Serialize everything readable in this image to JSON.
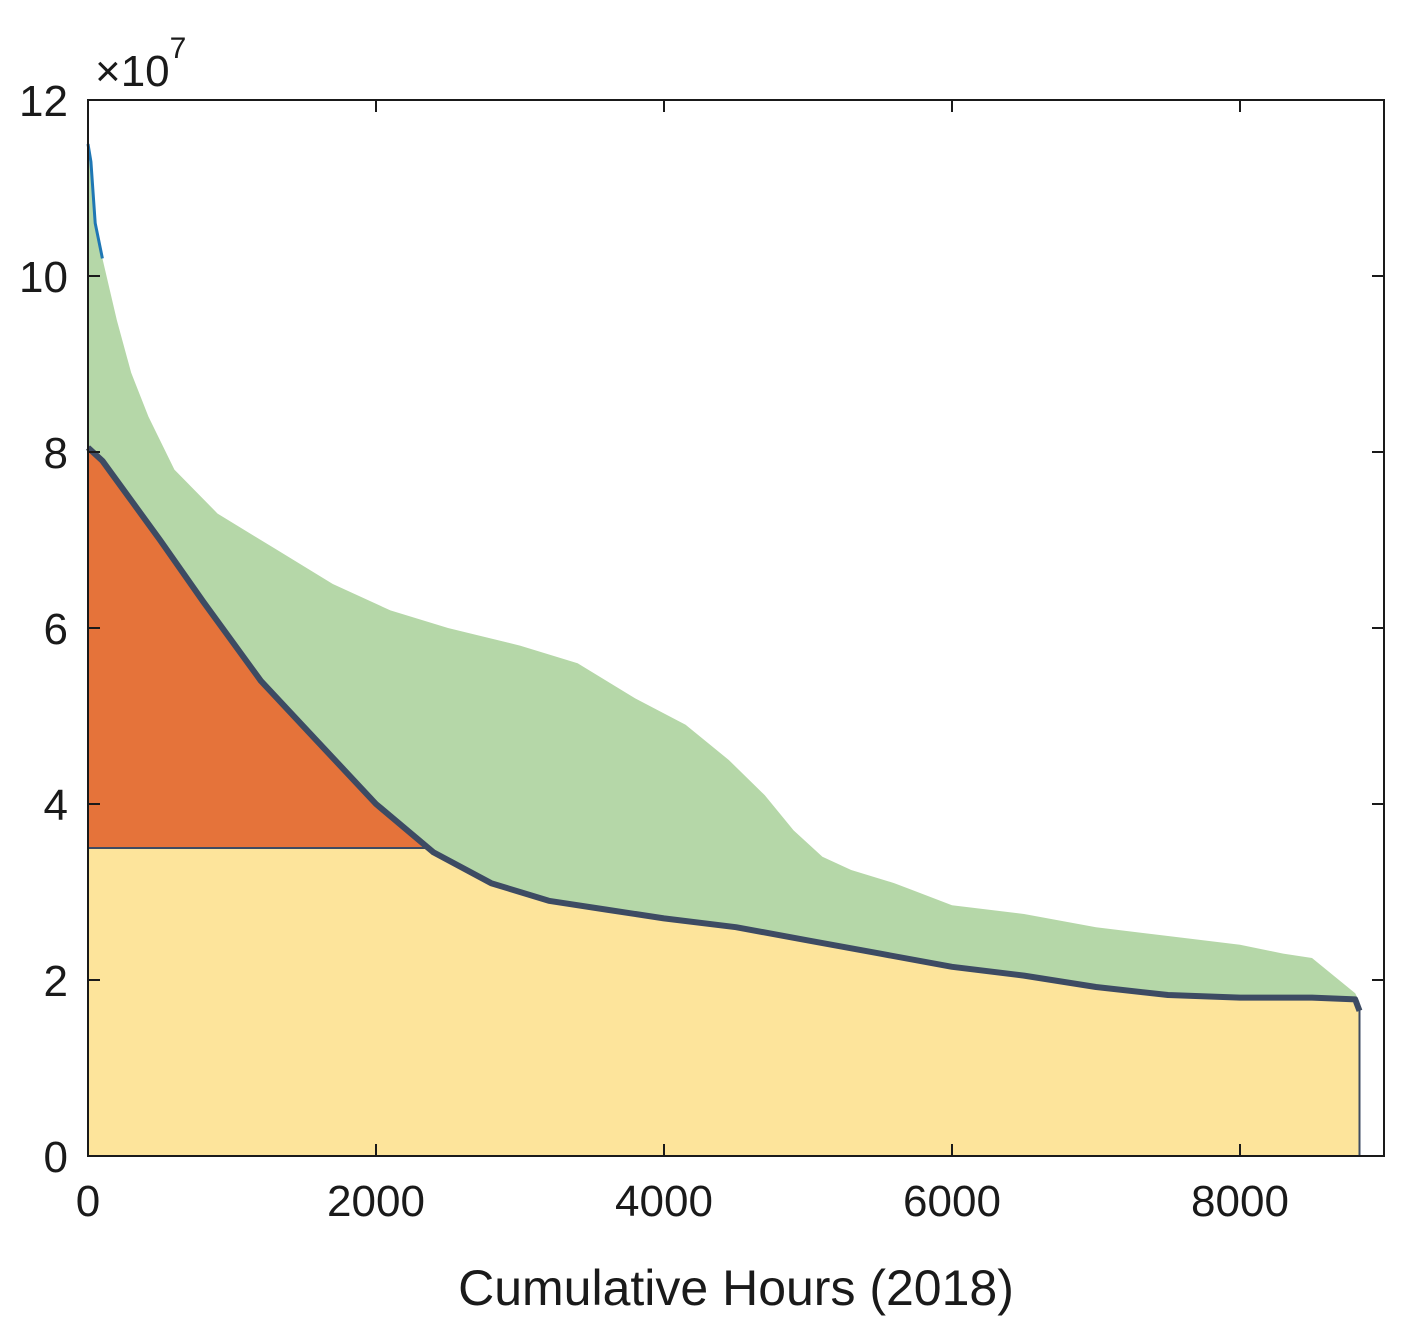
{
  "chart_data": {
    "type": "area",
    "title": "",
    "xlabel": "Cumulative Hours (2018)",
    "ylabel": "",
    "exponent_label": {
      "base": "×10",
      "power": "7"
    },
    "xlim": [
      0,
      9000
    ],
    "ylim": [
      0,
      12
    ],
    "x_ticks": [
      0,
      2000,
      4000,
      6000,
      8000
    ],
    "x_tick_labels": [
      "0",
      "2000",
      "4000",
      "6000",
      "8000"
    ],
    "y_ticks": [
      0,
      2,
      4,
      6,
      8,
      10,
      12
    ],
    "y_tick_labels": [
      "0",
      "2",
      "4",
      "6",
      "8",
      "10",
      "12"
    ],
    "grid": false,
    "legend": "none",
    "baseload_level": 3.5,
    "upper_curve": {
      "x": [
        0,
        20,
        50,
        100,
        200,
        300,
        420,
        600,
        900,
        1300,
        1700,
        2100,
        2500,
        3000,
        3400,
        3800,
        4150,
        4450,
        4700,
        4900,
        5100,
        5300,
        5600,
        6000,
        6500,
        7000,
        7500,
        8000,
        8300,
        8500,
        8800,
        8830
      ],
      "y": [
        11.5,
        11.3,
        10.6,
        10.2,
        9.5,
        8.9,
        8.4,
        7.8,
        7.3,
        6.9,
        6.5,
        6.2,
        6.0,
        5.8,
        5.6,
        5.2,
        4.9,
        4.5,
        4.1,
        3.7,
        3.4,
        3.25,
        3.1,
        2.85,
        2.75,
        2.6,
        2.5,
        2.4,
        2.3,
        2.25,
        1.85,
        1.75
      ]
    },
    "net_curve": {
      "x": [
        0,
        100,
        300,
        500,
        800,
        1200,
        1600,
        2000,
        2400,
        2800,
        3200,
        3600,
        4000,
        4500,
        5000,
        5500,
        6000,
        6500,
        7000,
        7500,
        8000,
        8500,
        8800,
        8830
      ],
      "y": [
        8.05,
        7.9,
        7.45,
        7.0,
        6.3,
        5.4,
        4.7,
        4.0,
        3.45,
        3.1,
        2.9,
        2.8,
        2.7,
        2.6,
        2.45,
        2.3,
        2.15,
        2.05,
        1.92,
        1.83,
        1.8,
        1.8,
        1.78,
        1.65
      ]
    },
    "colors": {
      "upper_fill": "#b5d7a8",
      "middle_fill": "#e5733a",
      "base_fill": "#fde49b",
      "net_line": "#3d4b63",
      "edge_line": "#3d4b63",
      "spike_line": "#1f77b4",
      "axis": "#1a1a1a"
    }
  }
}
